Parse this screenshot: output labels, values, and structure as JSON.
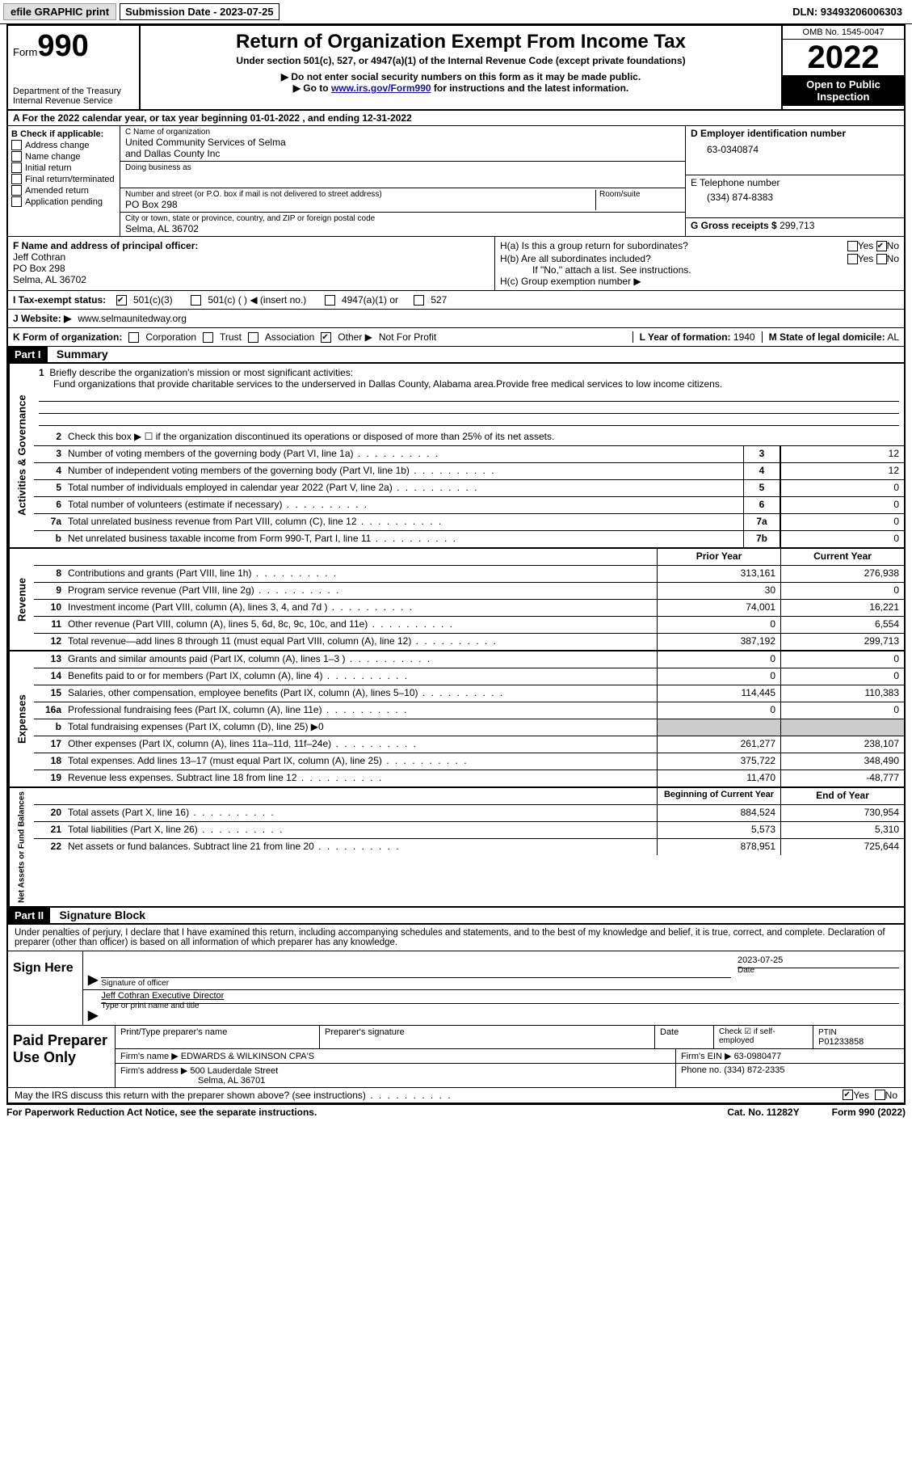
{
  "topbar": {
    "efile_label": "efile GRAPHIC print",
    "submission_label": "Submission Date - 2023-07-25",
    "dln": "DLN: 93493206006303"
  },
  "header": {
    "form_prefix": "Form",
    "form_number": "990",
    "dept": "Department of the Treasury",
    "irs": "Internal Revenue Service",
    "title": "Return of Organization Exempt From Income Tax",
    "subtitle": "Under section 501(c), 527, or 4947(a)(1) of the Internal Revenue Code (except private foundations)",
    "note1": "▶ Do not enter social security numbers on this form as it may be made public.",
    "note2_pre": "▶ Go to ",
    "note2_link": "www.irs.gov/Form990",
    "note2_post": " for instructions and the latest information.",
    "omb": "OMB No. 1545-0047",
    "year": "2022",
    "open": "Open to Public Inspection"
  },
  "period": "A For the 2022 calendar year, or tax year beginning 01-01-2022   , and ending 12-31-2022",
  "b": {
    "label": "B Check if applicable:",
    "opts": [
      "Address change",
      "Name change",
      "Initial return",
      "Final return/terminated",
      "Amended return",
      "Application pending"
    ]
  },
  "c": {
    "name_label": "C Name of organization",
    "name1": "United Community Services of Selma",
    "name2": "and Dallas County Inc",
    "dba_label": "Doing business as",
    "addr_label": "Number and street (or P.O. box if mail is not delivered to street address)",
    "room_label": "Room/suite",
    "addr": "PO Box 298",
    "city_label": "City or town, state or province, country, and ZIP or foreign postal code",
    "city": "Selma, AL  36702"
  },
  "d": {
    "label": "D Employer identification number",
    "value": "63-0340874"
  },
  "e": {
    "label": "E Telephone number",
    "value": "(334) 874-8383"
  },
  "g": {
    "label": "G Gross receipts $",
    "value": "299,713"
  },
  "f": {
    "label": "F  Name and address of principal officer:",
    "name": "Jeff Cothran",
    "addr": "PO Box 298",
    "city": "Selma, AL  36702"
  },
  "h": {
    "a": "H(a)  Is this a group return for subordinates?",
    "b": "H(b)  Are all subordinates included?",
    "b_note": "If \"No,\" attach a list. See instructions.",
    "c": "H(c)  Group exemption number ▶",
    "yes": "Yes",
    "no": "No"
  },
  "i": {
    "label": "I   Tax-exempt status:",
    "o501c3": "501(c)(3)",
    "o501c": "501(c) (  ) ◀ (insert no.)",
    "o4947": "4947(a)(1) or",
    "o527": "527"
  },
  "j": {
    "label": "J   Website: ▶",
    "value": "www.selmaunitedway.org"
  },
  "k": {
    "label": "K Form of organization:",
    "corp": "Corporation",
    "trust": "Trust",
    "assoc": "Association",
    "other": "Other ▶",
    "other_val": "Not For Profit",
    "l_label": "L Year of formation:",
    "l_val": "1940",
    "m_label": "M State of legal domicile:",
    "m_val": "AL"
  },
  "part1": {
    "header": "Part I",
    "title": "Summary",
    "vert_ag": "Activities & Governance",
    "vert_rev": "Revenue",
    "vert_exp": "Expenses",
    "vert_net": "Net Assets or Fund Balances",
    "l1": "Briefly describe the organization's mission or most significant activities:",
    "mission": "Fund organizations that provide charitable services to the underserved in Dallas County, Alabama area.Provide free medical services to low income citizens.",
    "l2": "Check this box ▶ ☐  if the organization discontinued its operations or disposed of more than 25% of its net assets.",
    "lines_ag": [
      {
        "n": "3",
        "d": "Number of voting members of the governing body (Part VI, line 1a)",
        "b": "3",
        "v": "12"
      },
      {
        "n": "4",
        "d": "Number of independent voting members of the governing body (Part VI, line 1b)",
        "b": "4",
        "v": "12"
      },
      {
        "n": "5",
        "d": "Total number of individuals employed in calendar year 2022 (Part V, line 2a)",
        "b": "5",
        "v": "0"
      },
      {
        "n": "6",
        "d": "Total number of volunteers (estimate if necessary)",
        "b": "6",
        "v": "0"
      },
      {
        "n": "7a",
        "d": "Total unrelated business revenue from Part VIII, column (C), line 12",
        "b": "7a",
        "v": "0"
      },
      {
        "n": "b",
        "d": "Net unrelated business taxable income from Form 990-T, Part I, line 11",
        "b": "7b",
        "v": "0"
      }
    ],
    "prior_label": "Prior Year",
    "curr_label": "Current Year",
    "lines_rev": [
      {
        "n": "8",
        "d": "Contributions and grants (Part VIII, line 1h)",
        "p": "313,161",
        "c": "276,938"
      },
      {
        "n": "9",
        "d": "Program service revenue (Part VIII, line 2g)",
        "p": "30",
        "c": "0"
      },
      {
        "n": "10",
        "d": "Investment income (Part VIII, column (A), lines 3, 4, and 7d )",
        "p": "74,001",
        "c": "16,221"
      },
      {
        "n": "11",
        "d": "Other revenue (Part VIII, column (A), lines 5, 6d, 8c, 9c, 10c, and 11e)",
        "p": "0",
        "c": "6,554"
      },
      {
        "n": "12",
        "d": "Total revenue—add lines 8 through 11 (must equal Part VIII, column (A), line 12)",
        "p": "387,192",
        "c": "299,713"
      }
    ],
    "lines_exp": [
      {
        "n": "13",
        "d": "Grants and similar amounts paid (Part IX, column (A), lines 1–3 )",
        "p": "0",
        "c": "0"
      },
      {
        "n": "14",
        "d": "Benefits paid to or for members (Part IX, column (A), line 4)",
        "p": "0",
        "c": "0"
      },
      {
        "n": "15",
        "d": "Salaries, other compensation, employee benefits (Part IX, column (A), lines 5–10)",
        "p": "114,445",
        "c": "110,383"
      },
      {
        "n": "16a",
        "d": "Professional fundraising fees (Part IX, column (A), line 11e)",
        "p": "0",
        "c": "0"
      },
      {
        "n": "b",
        "d": "Total fundraising expenses (Part IX, column (D), line 25) ▶0",
        "shade": true
      },
      {
        "n": "17",
        "d": "Other expenses (Part IX, column (A), lines 11a–11d, 11f–24e)",
        "p": "261,277",
        "c": "238,107"
      },
      {
        "n": "18",
        "d": "Total expenses. Add lines 13–17 (must equal Part IX, column (A), line 25)",
        "p": "375,722",
        "c": "348,490"
      },
      {
        "n": "19",
        "d": "Revenue less expenses. Subtract line 18 from line 12",
        "p": "11,470",
        "c": "-48,777"
      }
    ],
    "begin_label": "Beginning of Current Year",
    "end_label": "End of Year",
    "lines_net": [
      {
        "n": "20",
        "d": "Total assets (Part X, line 16)",
        "p": "884,524",
        "c": "730,954"
      },
      {
        "n": "21",
        "d": "Total liabilities (Part X, line 26)",
        "p": "5,573",
        "c": "5,310"
      },
      {
        "n": "22",
        "d": "Net assets or fund balances. Subtract line 21 from line 20",
        "p": "878,951",
        "c": "725,644"
      }
    ]
  },
  "part2": {
    "header": "Part II",
    "title": "Signature Block",
    "decl": "Under penalties of perjury, I declare that I have examined this return, including accompanying schedules and statements, and to the best of my knowledge and belief, it is true, correct, and complete. Declaration of preparer (other than officer) is based on all information of which preparer has any knowledge.",
    "sign_here": "Sign Here",
    "sig_officer": "Signature of officer",
    "sig_date": "2023-07-25",
    "date_label": "Date",
    "officer_name": "Jeff Cothran  Executive Director",
    "type_name": "Type or print name and title",
    "paid": "Paid Preparer Use Only",
    "print_name_label": "Print/Type preparer's name",
    "prep_sig_label": "Preparer's signature",
    "prep_date_label": "Date",
    "check_self": "Check ☑ if self-employed",
    "ptin_label": "PTIN",
    "ptin": "P01233858",
    "firm_name_label": "Firm's name    ▶",
    "firm_name": "EDWARDS & WILKINSON CPA'S",
    "firm_ein_label": "Firm's EIN ▶",
    "firm_ein": "63-0980477",
    "firm_addr_label": "Firm's address ▶",
    "firm_addr1": "500 Lauderdale Street",
    "firm_addr2": "Selma, AL  36701",
    "phone_label": "Phone no.",
    "phone": "(334) 872-2335",
    "discuss": "May the IRS discuss this return with the preparer shown above? (see instructions)"
  },
  "footer": {
    "pra": "For Paperwork Reduction Act Notice, see the separate instructions.",
    "cat": "Cat. No. 11282Y",
    "form": "Form 990 (2022)"
  }
}
